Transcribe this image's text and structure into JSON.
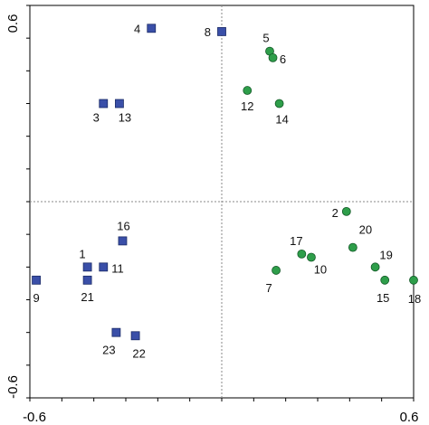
{
  "chart_data": {
    "type": "scatter",
    "title": "",
    "xlabel": "",
    "ylabel": "",
    "xlim": [
      -0.6,
      0.6
    ],
    "ylim": [
      -0.6,
      0.6
    ],
    "x_tick_labels": [
      "-0.6",
      "0.6"
    ],
    "y_tick_labels": [
      "-0.6",
      "0.6"
    ],
    "reference_lines": {
      "x": 0,
      "y": 0,
      "style": "dotted"
    },
    "grid": false,
    "series": [
      {
        "marker": "square",
        "color": "#3a4fa8",
        "points": [
          {
            "label": "1",
            "x": -0.42,
            "y": -0.2
          },
          {
            "label": "3",
            "x": -0.37,
            "y": 0.3
          },
          {
            "label": "4",
            "x": -0.22,
            "y": 0.53
          },
          {
            "label": "8",
            "x": 0.0,
            "y": 0.52
          },
          {
            "label": "9",
            "x": -0.58,
            "y": -0.24
          },
          {
            "label": "11",
            "x": -0.37,
            "y": -0.2
          },
          {
            "label": "13",
            "x": -0.32,
            "y": 0.3
          },
          {
            "label": "16",
            "x": -0.31,
            "y": -0.12
          },
          {
            "label": "21",
            "x": -0.42,
            "y": -0.24
          },
          {
            "label": "22",
            "x": -0.27,
            "y": -0.41
          },
          {
            "label": "23",
            "x": -0.33,
            "y": -0.4
          }
        ]
      },
      {
        "marker": "circle",
        "color": "#2e9e4a",
        "points": [
          {
            "label": "2",
            "x": 0.39,
            "y": -0.03
          },
          {
            "label": "5",
            "x": 0.15,
            "y": 0.46
          },
          {
            "label": "6",
            "x": 0.16,
            "y": 0.44
          },
          {
            "label": "7",
            "x": 0.17,
            "y": -0.21
          },
          {
            "label": "10",
            "x": 0.28,
            "y": -0.17
          },
          {
            "label": "12",
            "x": 0.08,
            "y": 0.34
          },
          {
            "label": "14",
            "x": 0.18,
            "y": 0.3
          },
          {
            "label": "15",
            "x": 0.51,
            "y": -0.24
          },
          {
            "label": "17",
            "x": 0.25,
            "y": -0.16
          },
          {
            "label": "18",
            "x": 0.6,
            "y": -0.24
          },
          {
            "label": "19",
            "x": 0.48,
            "y": -0.2
          },
          {
            "label": "20",
            "x": 0.41,
            "y": -0.14
          }
        ]
      }
    ]
  }
}
